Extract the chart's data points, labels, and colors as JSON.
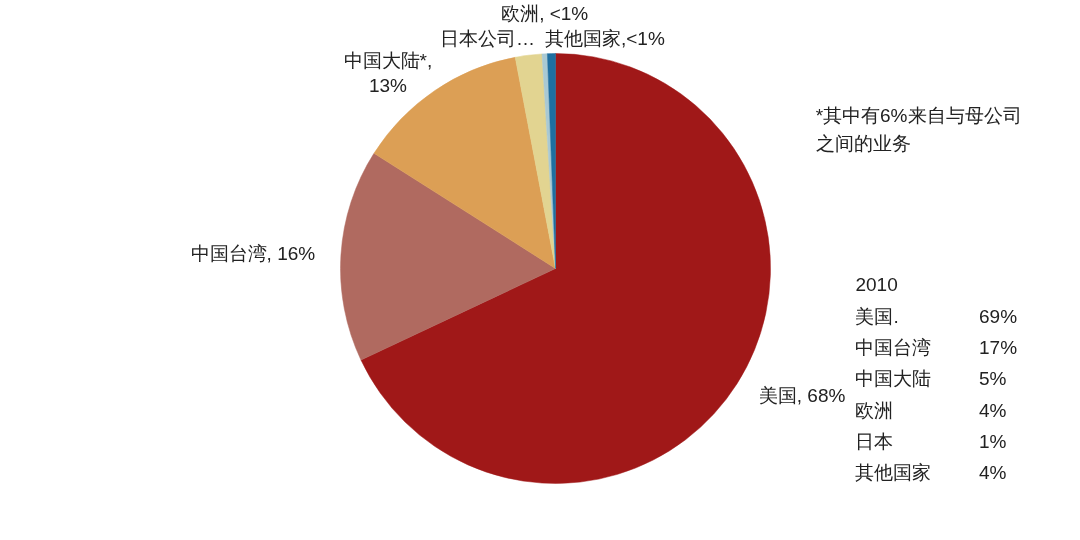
{
  "chart_data": {
    "type": "pie",
    "categories": [
      "美国, 68%",
      "中国台湾, 16%",
      "中国大陆*, 13%",
      "日本公司…",
      "欧洲, <1%",
      "其他国家,<1%"
    ],
    "values": [
      68,
      16,
      13,
      2,
      0.4,
      0.6
    ],
    "colors": [
      "#a01818",
      "#b06a60",
      "#dc9f55",
      "#e2d491",
      "#a9c9d3",
      "#1f6fa0"
    ],
    "annotations": [
      "*其中有6%来自与母公司之间的业务",
      "2010",
      "美国. 69%",
      "中国台湾 17%",
      "中国大陆 5%",
      "欧洲 4%",
      "日本 1%",
      "其他国家 4%"
    ]
  }
}
